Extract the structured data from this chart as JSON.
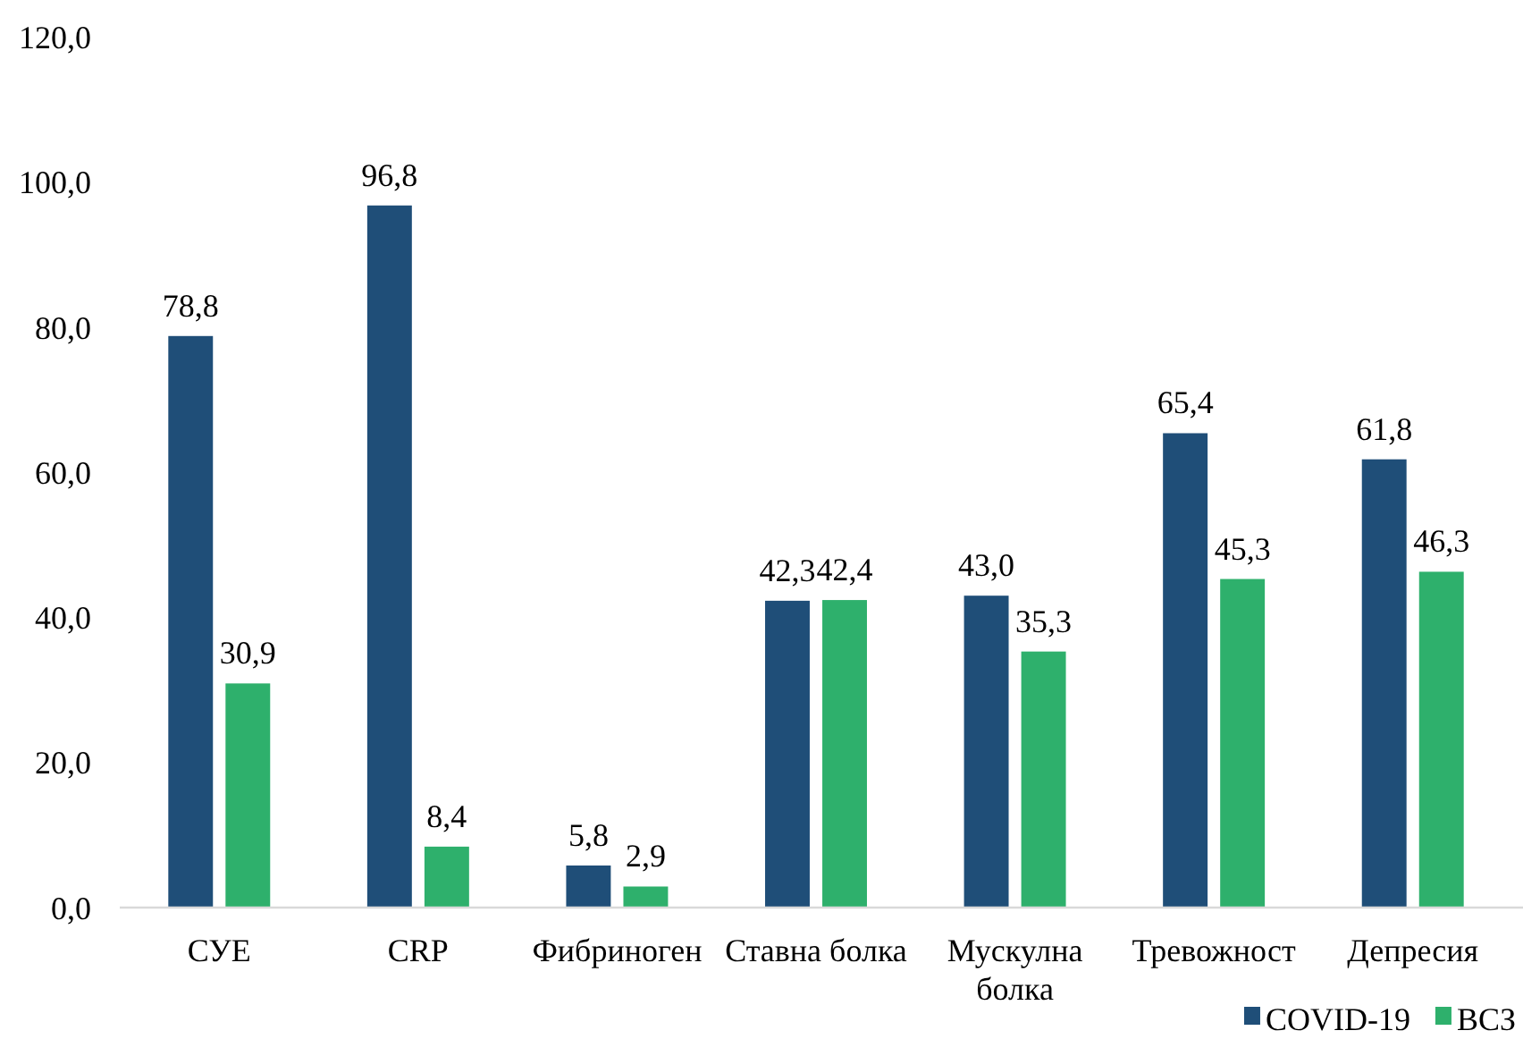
{
  "chart_data": {
    "type": "bar",
    "categories": [
      "СУЕ",
      "CRP",
      "Фибриноген",
      "Ставна болка",
      "Мускулна болка",
      "Тревожност",
      "Депресия"
    ],
    "series": [
      {
        "name": "COVID-19",
        "color": "#1f4e78",
        "values": [
          78.8,
          96.8,
          5.8,
          42.3,
          43.0,
          65.4,
          61.8
        ],
        "value_labels": [
          "78,8",
          "96,8",
          "5,8",
          "42,3",
          "43,0",
          "65,4",
          "61,8"
        ]
      },
      {
        "name": "ВСЗ",
        "color": "#2eb06c",
        "values": [
          30.9,
          8.4,
          2.9,
          42.4,
          35.3,
          45.3,
          46.3
        ],
        "value_labels": [
          "30,9",
          "8,4",
          "2,9",
          "42,4",
          "35,3",
          "45,3",
          "46,3"
        ]
      }
    ],
    "ylim": [
      0,
      120
    ],
    "yticks": [
      {
        "value": 0,
        "label": "0,0"
      },
      {
        "value": 20,
        "label": "20,0"
      },
      {
        "value": 40,
        "label": "40,0"
      },
      {
        "value": 60,
        "label": "60,0"
      },
      {
        "value": 80,
        "label": "80,0"
      },
      {
        "value": 100,
        "label": "100,0"
      },
      {
        "value": 120,
        "label": "120,0"
      }
    ],
    "grid": false,
    "legend": "bottom right"
  }
}
